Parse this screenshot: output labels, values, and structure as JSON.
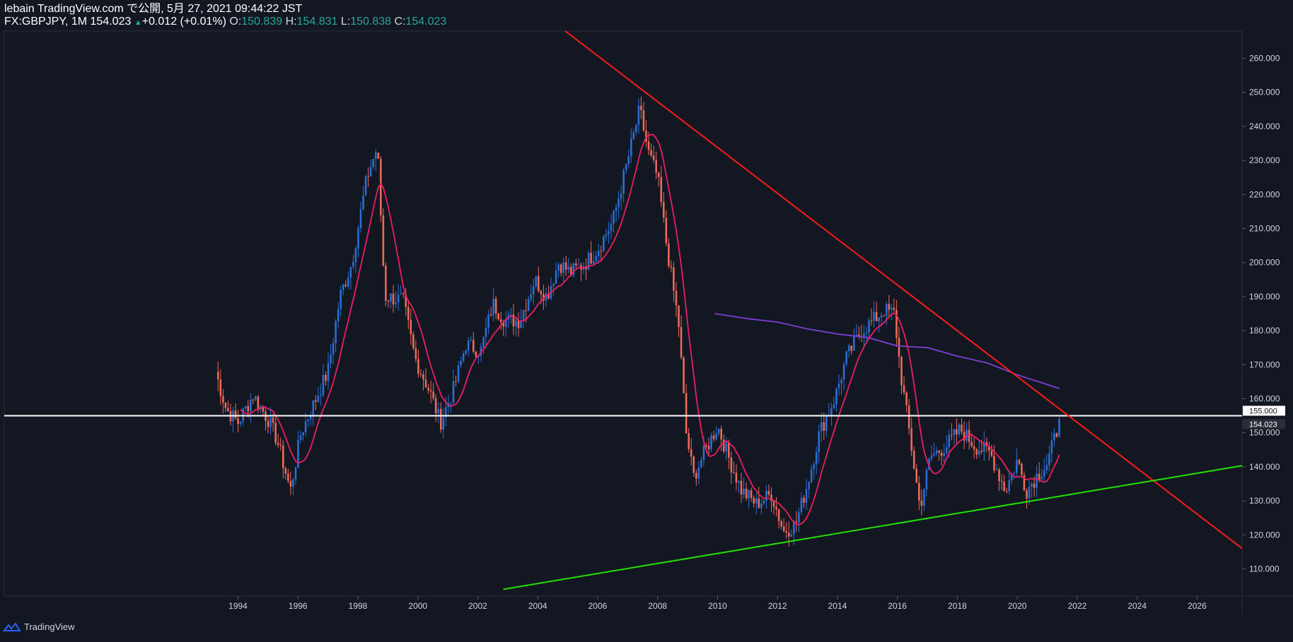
{
  "header": {
    "line1": "lebain TradingView.com で公開, 5月 27, 2021 09:44:22 JST",
    "symbol": "FX:GBPJPY, 1M",
    "last": "154.023",
    "change": "+0.012 (+0.01%)",
    "o_label": "O:",
    "o_value": "150.839",
    "h_label": "H:",
    "h_value": "154.831",
    "l_label": "L:",
    "l_value": "150.838",
    "c_label": "C:",
    "c_value": "154.023"
  },
  "footer": {
    "brand": "TradingView"
  },
  "colors": {
    "background": "#131722",
    "bull": "#2a6fd6",
    "bear": "#f06a5a",
    "ma_short": "#e91e63",
    "ma_long": "#7e3fd0",
    "resistance": "#ff1a1a",
    "support": "#22e000",
    "level": "#ffffff"
  },
  "chart_data": {
    "type": "candlestick",
    "symbol": "FX:GBPJPY",
    "interval": "1M",
    "ylim": [
      102,
      268
    ],
    "xlim": [
      1986.2,
      2027.5
    ],
    "y_ticks": [
      "260.000",
      "250.000",
      "240.000",
      "230.000",
      "220.000",
      "210.000",
      "200.000",
      "190.000",
      "180.000",
      "170.000",
      "160.000",
      "150.000",
      "140.000",
      "130.000",
      "120.000",
      "110.000"
    ],
    "x_ticks": [
      "1994",
      "1996",
      "1998",
      "2000",
      "2002",
      "2004",
      "2006",
      "2008",
      "2010",
      "2012",
      "2014",
      "2016",
      "2018",
      "2020",
      "2022",
      "2024",
      "2026"
    ],
    "price_tags": [
      {
        "label": "155.000",
        "value": 155.0,
        "style": "white"
      },
      {
        "label": "154.023",
        "value": 154.023,
        "style": "dark"
      }
    ],
    "anchors": [
      [
        1993.25,
        168
      ],
      [
        1993.6,
        157
      ],
      [
        1994.0,
        153
      ],
      [
        1994.5,
        161
      ],
      [
        1995.0,
        154
      ],
      [
        1995.3,
        148
      ],
      [
        1995.75,
        133
      ],
      [
        1996.1,
        150
      ],
      [
        1996.6,
        160
      ],
      [
        1997.0,
        168
      ],
      [
        1997.4,
        190
      ],
      [
        1997.8,
        200
      ],
      [
        1998.3,
        225
      ],
      [
        1998.65,
        234
      ],
      [
        1998.9,
        190
      ],
      [
        1999.5,
        189
      ],
      [
        1999.9,
        172
      ],
      [
        2000.4,
        162
      ],
      [
        2000.75,
        153
      ],
      [
        2001.2,
        163
      ],
      [
        2001.6,
        176
      ],
      [
        2002.1,
        174
      ],
      [
        2002.5,
        188
      ],
      [
        2002.9,
        183
      ],
      [
        2003.4,
        183
      ],
      [
        2003.9,
        195
      ],
      [
        2004.3,
        190
      ],
      [
        2004.7,
        200
      ],
      [
        2005.1,
        197
      ],
      [
        2005.6,
        200
      ],
      [
        2006.0,
        204
      ],
      [
        2006.5,
        212
      ],
      [
        2007.0,
        230
      ],
      [
        2007.4,
        245
      ],
      [
        2007.7,
        232
      ],
      [
        2008.0,
        225
      ],
      [
        2008.3,
        205
      ],
      [
        2008.7,
        182
      ],
      [
        2008.95,
        150
      ],
      [
        2009.2,
        137
      ],
      [
        2009.6,
        145
      ],
      [
        2010.0,
        152
      ],
      [
        2010.4,
        142
      ],
      [
        2010.8,
        133
      ],
      [
        2011.3,
        129
      ],
      [
        2011.8,
        132
      ],
      [
        2012.2,
        121
      ],
      [
        2012.6,
        123
      ],
      [
        2013.0,
        135
      ],
      [
        2013.4,
        150
      ],
      [
        2013.9,
        160
      ],
      [
        2014.3,
        172
      ],
      [
        2014.8,
        180
      ],
      [
        2015.2,
        183
      ],
      [
        2015.55,
        186
      ],
      [
        2015.9,
        185
      ],
      [
        2016.1,
        168
      ],
      [
        2016.4,
        150
      ],
      [
        2016.75,
        128
      ],
      [
        2017.1,
        143
      ],
      [
        2017.6,
        146
      ],
      [
        2018.1,
        151
      ],
      [
        2018.6,
        146
      ],
      [
        2019.1,
        144
      ],
      [
        2019.6,
        133
      ],
      [
        2020.0,
        142
      ],
      [
        2020.3,
        133
      ],
      [
        2020.7,
        138
      ],
      [
        2021.0,
        141
      ],
      [
        2021.4,
        153
      ]
    ],
    "candle_count": 338,
    "ma_short": {
      "type": "moving-average",
      "period": 10
    },
    "ma_long": {
      "type": "moving-average",
      "period": 120,
      "start": 2009.9,
      "end": 2021.4,
      "points": [
        [
          2009.9,
          185
        ],
        [
          2011.0,
          183.5
        ],
        [
          2012.0,
          182.5
        ],
        [
          2013.0,
          180.5
        ],
        [
          2014.0,
          179
        ],
        [
          2015.0,
          178
        ],
        [
          2016.0,
          175.5
        ],
        [
          2017.0,
          175
        ],
        [
          2018.0,
          172.5
        ],
        [
          2019.0,
          170.5
        ],
        [
          2020.0,
          167
        ],
        [
          2021.4,
          163
        ]
      ]
    },
    "horizontal_line": {
      "value": 155.0
    },
    "trendlines": [
      {
        "name": "resistance",
        "from": [
          2004.92,
          268
        ],
        "to": [
          2027.5,
          116
        ]
      },
      {
        "name": "support",
        "from": [
          2002.85,
          104
        ],
        "to": [
          2027.5,
          140.3
        ]
      }
    ]
  }
}
